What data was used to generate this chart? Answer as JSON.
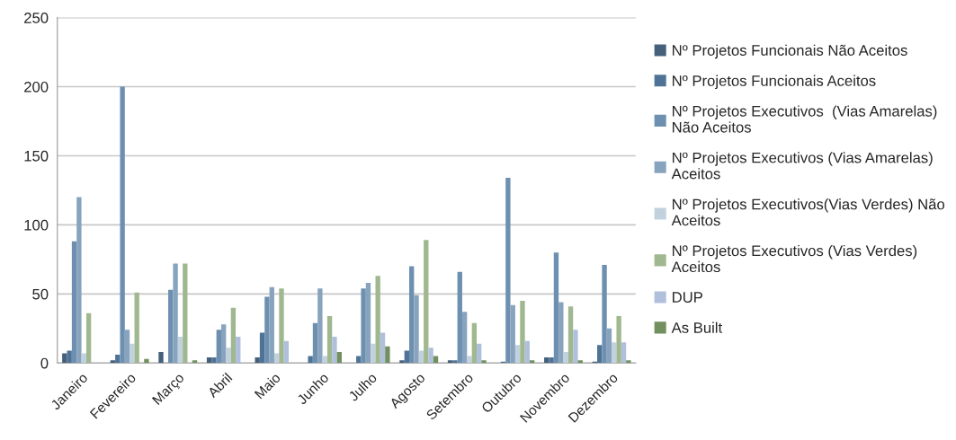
{
  "chart_data": {
    "type": "bar",
    "categories": [
      "Janeiro",
      "Fevereiro",
      "Março",
      "Abril",
      "Maio",
      "Junho",
      "Julho",
      "Agosto",
      "Setembro",
      "Outubro",
      "Novembro",
      "Dezembro"
    ],
    "series": [
      {
        "name": "Nº Projetos Funcionais Não Aceitos",
        "color": "#44607a",
        "values": [
          7,
          2,
          8,
          4,
          4,
          0,
          0,
          2,
          2,
          0,
          4,
          1
        ]
      },
      {
        "name": "Nº Projetos Funcionais Aceitos",
        "color": "#4f7396",
        "values": [
          9,
          6,
          0,
          4,
          22,
          5,
          5,
          9,
          2,
          1,
          4,
          13
        ]
      },
      {
        "name": "Nº Projetos Executivos  (Vias Amarelas) Não Aceitos",
        "color": "#6e90b0",
        "values": [
          88,
          200,
          53,
          24,
          48,
          29,
          54,
          70,
          66,
          134,
          80,
          71
        ]
      },
      {
        "name": "Nº Projetos Executivos (Vias Amarelas) Aceitos",
        "color": "#88a3bd",
        "values": [
          120,
          24,
          72,
          28,
          55,
          54,
          58,
          49,
          37,
          42,
          44,
          25
        ]
      },
      {
        "name": "Nº Projetos Executivos(Vias Verdes) Não Aceitos",
        "color": "#c2d1de",
        "values": [
          7,
          14,
          19,
          11,
          7,
          5,
          14,
          9,
          5,
          13,
          8,
          15
        ]
      },
      {
        "name": "Nº Projetos Executivos (Vias Verdes) Aceitos",
        "color": "#a0b88f",
        "values": [
          36,
          51,
          72,
          40,
          54,
          34,
          63,
          89,
          29,
          45,
          41,
          34
        ]
      },
      {
        "name": "DUP",
        "color": "#b0bfdc",
        "values": [
          0,
          0,
          0,
          19,
          16,
          19,
          22,
          11,
          14,
          16,
          24,
          15
        ]
      },
      {
        "name": "As Built",
        "color": "#72905f",
        "values": [
          0,
          3,
          2,
          0,
          0,
          8,
          12,
          5,
          2,
          2,
          2,
          2
        ]
      }
    ],
    "ylim": [
      0,
      250
    ],
    "yticks": [
      0,
      50,
      100,
      150,
      200,
      250
    ],
    "grid": "y",
    "legend": "right"
  }
}
